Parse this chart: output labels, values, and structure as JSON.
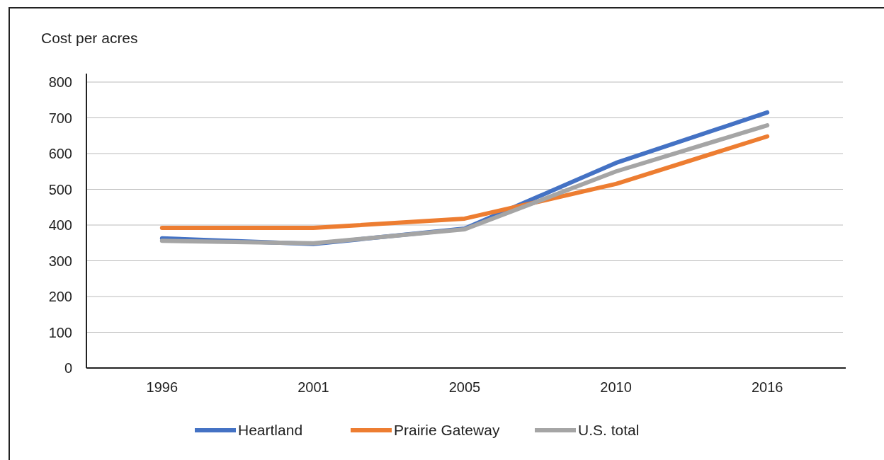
{
  "chart_data": {
    "type": "line",
    "ylabel": "Cost per acres",
    "categories": [
      "1996",
      "2001",
      "2005",
      "2010",
      "2016"
    ],
    "series": [
      {
        "name": "Heartland",
        "color": "#4472c4",
        "values": [
          363,
          347,
          390,
          574,
          715
        ]
      },
      {
        "name": "Prairie Gateway",
        "color": "#ed7d31",
        "values": [
          392,
          392,
          418,
          515,
          648
        ]
      },
      {
        "name": "U.S. total",
        "color": "#a5a5a5",
        "values": [
          356,
          349,
          388,
          550,
          679
        ]
      }
    ],
    "ylim": [
      0,
      800
    ],
    "yticks": [
      0,
      100,
      200,
      300,
      400,
      500,
      600,
      700,
      800
    ],
    "grid": "y",
    "legend": "bottom",
    "line_style": "solid",
    "marker": "none"
  }
}
